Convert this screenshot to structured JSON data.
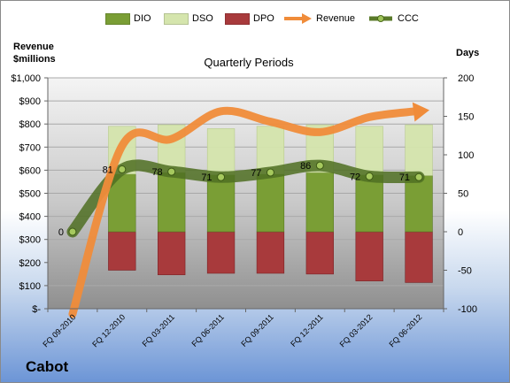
{
  "company": "Cabot",
  "left_axis_title": [
    "Revenue",
    "$millions"
  ],
  "right_axis_title": "Days",
  "chart_data": {
    "type": "bar",
    "title": "Quarterly Periods",
    "categories": [
      "FQ 09-2010",
      "FQ 12-2010",
      "FQ 03-2011",
      "FQ 06-2011",
      "FQ 09-2011",
      "FQ 12-2011",
      "FQ 03-2012",
      "FQ 06-2012"
    ],
    "left_axis": {
      "label": "Revenue $millions",
      "ylim": [
        0,
        1000
      ],
      "ticks": [
        "$-",
        "$100",
        "$200",
        "$300",
        "$400",
        "$500",
        "$600",
        "$700",
        "$800",
        "$900",
        "$1,000"
      ]
    },
    "right_axis": {
      "label": "Days",
      "ylim": [
        -100,
        200
      ],
      "ticks": [
        "-100",
        "-50",
        "0",
        "50",
        "100",
        "150",
        "200"
      ]
    },
    "series": [
      {
        "name": "DIO",
        "type": "bar",
        "axis": "right",
        "color": "#7a9e35",
        "values": [
          null,
          75,
          77,
          74,
          75,
          77,
          74,
          73
        ]
      },
      {
        "name": "DSO",
        "type": "bar",
        "axis": "right",
        "color": "#d5e5ad",
        "values": [
          null,
          62,
          62,
          60,
          62,
          62,
          63,
          66
        ]
      },
      {
        "name": "DPO",
        "type": "bar",
        "axis": "right",
        "color": "#a83a3c",
        "values": [
          null,
          -50,
          -56,
          -54,
          -54,
          -55,
          -64,
          -66
        ]
      },
      {
        "name": "Revenue",
        "type": "line",
        "axis": "left",
        "color": "#f08c3a",
        "values": [
          0,
          705,
          735,
          855,
          810,
          765,
          830,
          855
        ]
      },
      {
        "name": "CCC",
        "type": "line",
        "axis": "right",
        "color": "#5a7a2a",
        "values": [
          0,
          81,
          78,
          71,
          77,
          86,
          72,
          71
        ],
        "labels": [
          "0",
          "81",
          "78",
          "71",
          "77",
          "86",
          "72",
          "71"
        ]
      }
    ],
    "legend": [
      "DIO",
      "DSO",
      "DPO",
      "Revenue",
      "CCC"
    ],
    "legend_position": "top",
    "grid": true
  }
}
